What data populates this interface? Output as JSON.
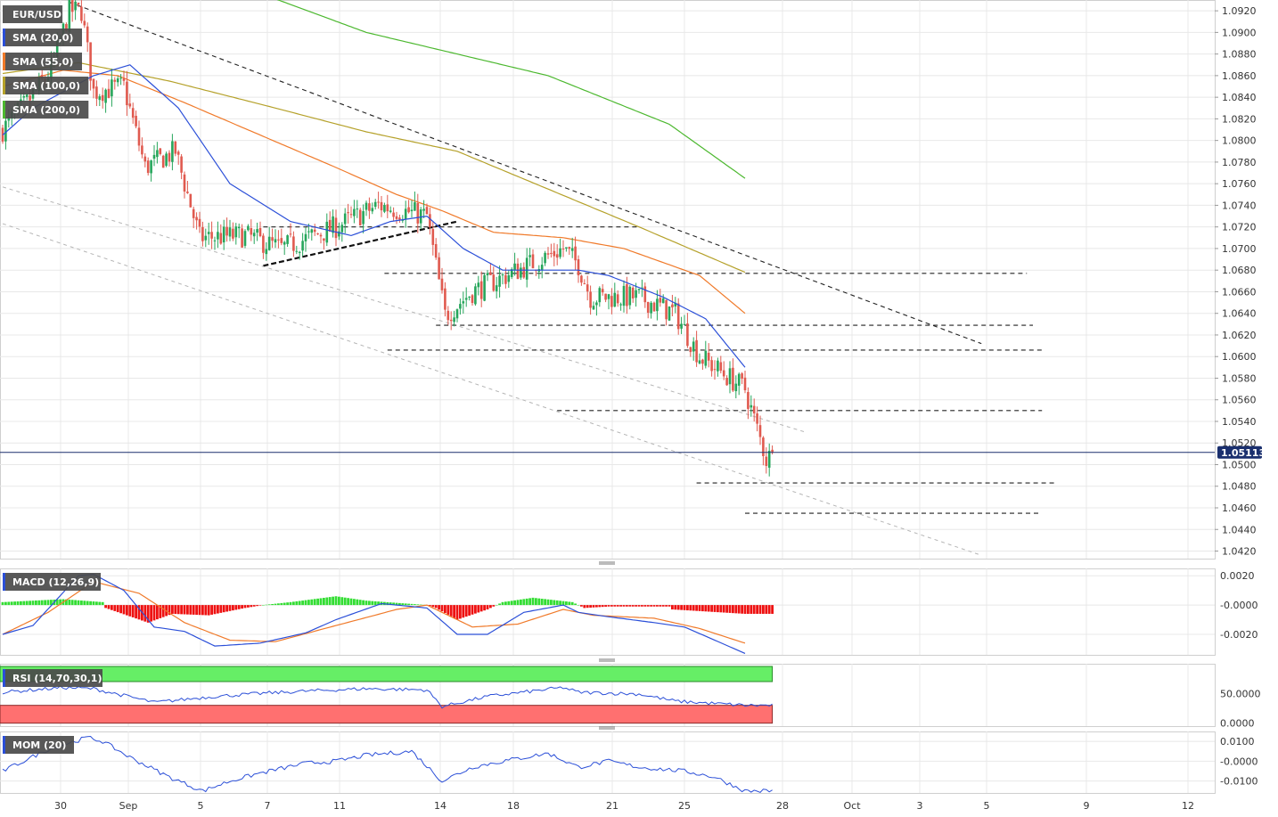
{
  "symbol": "EUR/USD",
  "colors": {
    "up": "#26a65b",
    "down": "#e05a4f",
    "sma20": "#2b4fd8",
    "sma55": "#f07a2a",
    "sma100": "#b5a12a",
    "sma200": "#4cb82f",
    "macd_pos": "#33dd33",
    "macd_neg": "#ee1111",
    "rsi_upper": "#66ee66",
    "rsi_lower": "#ff7070",
    "price_line": "#1a2f6e",
    "legend_bg": "#4a4a4a",
    "grid": "#e8e8e8"
  },
  "legend": {
    "main": [
      {
        "label": "EUR/USD"
      },
      {
        "label": "SMA (20,0)",
        "color_key": "sma20"
      },
      {
        "label": "SMA (55,0)",
        "color_key": "sma55"
      },
      {
        "label": "SMA (100,0)",
        "color_key": "sma100"
      },
      {
        "label": "SMA (200,0)",
        "color_key": "sma200"
      }
    ],
    "macd": "MACD (12,26,9)",
    "rsi": "RSI (14,70,30,1)",
    "mom": "MOM (20)"
  },
  "last_price": "1.05113",
  "chart_data": [
    {
      "type": "candlestick",
      "timeframe": "4H",
      "yticks": [
        "1.0920",
        "1.0900",
        "1.0880",
        "1.0860",
        "1.0840",
        "1.0820",
        "1.0800",
        "1.0780",
        "1.0760",
        "1.0740",
        "1.0720",
        "1.0700",
        "1.0680",
        "1.0660",
        "1.0640",
        "1.0620",
        "1.0600",
        "1.0580",
        "1.0560",
        "1.0540",
        "1.0520",
        "1.0500",
        "1.0480",
        "1.0460",
        "1.0440",
        "1.0420"
      ],
      "ylim": [
        1.0413,
        1.093
      ],
      "x_date_labels": [
        "30",
        "Sep",
        "5",
        "7",
        "11",
        "14",
        "18",
        "21",
        "25",
        "28",
        "Oct",
        "3",
        "5",
        "9",
        "12"
      ],
      "current_price": 1.05113,
      "series": {
        "close_anchors": [
          [
            0,
            1.081
          ],
          [
            8,
            1.0835
          ],
          [
            16,
            1.0865
          ],
          [
            22,
            1.092
          ],
          [
            26,
            1.092
          ],
          [
            30,
            1.0845
          ],
          [
            40,
            1.085
          ],
          [
            47,
            1.0775
          ],
          [
            57,
            1.079
          ],
          [
            65,
            1.071
          ],
          [
            80,
            1.0712
          ],
          [
            92,
            1.07
          ],
          [
            110,
            1.072
          ],
          [
            124,
            1.074
          ],
          [
            140,
            1.073
          ],
          [
            146,
            1.0638
          ],
          [
            155,
            1.066
          ],
          [
            170,
            1.068
          ],
          [
            185,
            1.07
          ],
          [
            190,
            1.0685
          ],
          [
            194,
            1.0655
          ],
          [
            210,
            1.0655
          ],
          [
            222,
            1.064
          ],
          [
            230,
            1.06
          ],
          [
            245,
            1.057
          ],
          [
            252,
            1.0505
          ],
          [
            254,
            1.051
          ]
        ],
        "sma20": [
          [
            0,
            1.0805
          ],
          [
            10,
            1.083
          ],
          [
            30,
            1.086
          ],
          [
            42,
            1.087
          ],
          [
            58,
            1.083
          ],
          [
            75,
            1.076
          ],
          [
            95,
            1.0725
          ],
          [
            115,
            1.0712
          ],
          [
            128,
            1.0725
          ],
          [
            140,
            1.073
          ],
          [
            152,
            1.07
          ],
          [
            165,
            1.068
          ],
          [
            180,
            1.068
          ],
          [
            190,
            1.068
          ],
          [
            200,
            1.0675
          ],
          [
            218,
            1.0655
          ],
          [
            232,
            1.0635
          ],
          [
            245,
            1.059
          ]
        ],
        "sma55": [
          [
            0,
            1.085
          ],
          [
            20,
            1.0865
          ],
          [
            38,
            1.086
          ],
          [
            60,
            1.0835
          ],
          [
            85,
            1.0805
          ],
          [
            110,
            1.0775
          ],
          [
            130,
            1.075
          ],
          [
            145,
            1.0735
          ],
          [
            162,
            1.0715
          ],
          [
            185,
            1.071
          ],
          [
            205,
            1.07
          ],
          [
            230,
            1.0675
          ],
          [
            245,
            1.064
          ]
        ],
        "sma100": [
          [
            0,
            1.0862
          ],
          [
            25,
            1.0872
          ],
          [
            55,
            1.0855
          ],
          [
            90,
            1.083
          ],
          [
            120,
            1.0808
          ],
          [
            150,
            1.079
          ],
          [
            180,
            1.0755
          ],
          [
            210,
            1.072
          ],
          [
            245,
            1.0678
          ]
        ],
        "sma200": [
          [
            60,
            1.0962
          ],
          [
            120,
            1.09
          ],
          [
            180,
            1.086
          ],
          [
            220,
            1.0815
          ],
          [
            245,
            1.0765
          ]
        ]
      },
      "trendlines": [
        {
          "style": "dashed",
          "points": [
            [
              22,
              1.0928
            ],
            [
              323,
              1.0612
            ]
          ]
        },
        {
          "style": "dashed-bold",
          "points": [
            [
              86,
              1.0684
            ],
            [
              150,
              1.0725
            ]
          ]
        },
        {
          "style": "dotted-gray",
          "points": [
            [
              0,
              1.0757
            ],
            [
              265,
              1.053
            ]
          ]
        },
        {
          "style": "dotted-gray",
          "points": [
            [
              0,
              1.0723
            ],
            [
              322,
              1.0417
            ]
          ]
        }
      ],
      "horizontal_levels": [
        {
          "value": 1.072,
          "from": 86,
          "to": 210
        },
        {
          "value": 1.0677,
          "from": 126,
          "to": 338
        },
        {
          "value": 1.0629,
          "from": 143,
          "to": 340
        },
        {
          "value": 1.0606,
          "from": 127,
          "to": 343
        },
        {
          "value": 1.055,
          "from": 183,
          "to": 343
        },
        {
          "value": 1.0483,
          "from": 229,
          "to": 347
        },
        {
          "value": 1.0455,
          "from": 245,
          "to": 342
        }
      ]
    },
    {
      "type": "bar",
      "name": "MACD (12,26,9)",
      "yticks": [
        "0.0020",
        "-0.0000",
        "-0.0020"
      ],
      "ylim": [
        -0.0034,
        0.0025
      ],
      "histogram_anchors": [
        [
          0,
          0.0002
        ],
        [
          20,
          0.0004
        ],
        [
          33,
          0.0002
        ],
        [
          34,
          -0.0002
        ],
        [
          48,
          -0.0012
        ],
        [
          56,
          -0.0006
        ],
        [
          68,
          -0.0007
        ],
        [
          80,
          -0.0002
        ],
        [
          86,
          0.0
        ],
        [
          95,
          0.0002
        ],
        [
          110,
          0.0006
        ],
        [
          120,
          0.0003
        ],
        [
          140,
          0.0
        ],
        [
          143,
          -0.0002
        ],
        [
          150,
          -0.001
        ],
        [
          160,
          -0.0003
        ],
        [
          165,
          0.0002
        ],
        [
          175,
          0.0005
        ],
        [
          188,
          0.0002
        ],
        [
          192,
          -0.0002
        ],
        [
          200,
          -0.0001
        ],
        [
          220,
          -0.0001
        ],
        [
          221,
          -0.0003
        ],
        [
          245,
          -0.0006
        ]
      ],
      "macd_line": [
        [
          0,
          -0.002
        ],
        [
          10,
          -0.0014
        ],
        [
          25,
          0.002
        ],
        [
          30,
          0.0021
        ],
        [
          40,
          0.001
        ],
        [
          50,
          -0.0015
        ],
        [
          60,
          -0.0018
        ],
        [
          70,
          -0.0028
        ],
        [
          85,
          -0.0026
        ],
        [
          100,
          -0.0019
        ],
        [
          110,
          -0.001
        ],
        [
          125,
          0.0001
        ],
        [
          140,
          -0.0002
        ],
        [
          150,
          -0.002
        ],
        [
          160,
          -0.002
        ],
        [
          172,
          -0.0005
        ],
        [
          185,
          0.0
        ],
        [
          190,
          -0.0005
        ],
        [
          200,
          -0.0008
        ],
        [
          215,
          -0.0012
        ],
        [
          225,
          -0.0015
        ],
        [
          245,
          -0.0033
        ]
      ],
      "signal_line": [
        [
          0,
          -0.002
        ],
        [
          15,
          -0.0005
        ],
        [
          30,
          0.0016
        ],
        [
          45,
          0.0008
        ],
        [
          60,
          -0.0012
        ],
        [
          75,
          -0.0024
        ],
        [
          90,
          -0.0025
        ],
        [
          110,
          -0.0014
        ],
        [
          130,
          -0.0003
        ],
        [
          140,
          0.0
        ],
        [
          155,
          -0.0015
        ],
        [
          170,
          -0.0013
        ],
        [
          185,
          -0.0003
        ],
        [
          195,
          -0.0007
        ],
        [
          215,
          -0.0009
        ],
        [
          230,
          -0.0016
        ],
        [
          245,
          -0.0026
        ]
      ]
    },
    {
      "type": "line",
      "name": "RSI (14,70,30,1)",
      "yticks": [
        "50.0000",
        "0.0000"
      ],
      "ylim": [
        -5,
        100
      ],
      "upper_band": 70,
      "lower_band": 30,
      "values": [
        [
          0,
          52
        ],
        [
          20,
          60
        ],
        [
          30,
          58
        ],
        [
          50,
          35
        ],
        [
          70,
          45
        ],
        [
          85,
          50
        ],
        [
          100,
          54
        ],
        [
          120,
          58
        ],
        [
          140,
          56
        ],
        [
          145,
          28
        ],
        [
          160,
          45
        ],
        [
          185,
          60
        ],
        [
          190,
          52
        ],
        [
          210,
          49
        ],
        [
          222,
          37
        ],
        [
          245,
          30
        ]
      ]
    },
    {
      "type": "line",
      "name": "MOM (20)",
      "yticks": [
        "0.0100",
        "-0.0000",
        "-0.0100"
      ],
      "ylim": [
        -0.016,
        0.015
      ],
      "values": [
        [
          0,
          -0.005
        ],
        [
          15,
          0.006
        ],
        [
          28,
          0.012
        ],
        [
          33,
          0.01
        ],
        [
          42,
          0.002
        ],
        [
          55,
          -0.008
        ],
        [
          66,
          -0.015
        ],
        [
          75,
          -0.01
        ],
        [
          85,
          -0.006
        ],
        [
          100,
          -0.001
        ],
        [
          110,
          0.0
        ],
        [
          120,
          0.003
        ],
        [
          135,
          0.005
        ],
        [
          145,
          -0.01
        ],
        [
          155,
          -0.003
        ],
        [
          165,
          0.0
        ],
        [
          180,
          0.004
        ],
        [
          190,
          -0.003
        ],
        [
          200,
          0.0
        ],
        [
          210,
          -0.003
        ],
        [
          225,
          -0.005
        ],
        [
          235,
          -0.008
        ],
        [
          245,
          -0.015
        ]
      ]
    }
  ]
}
